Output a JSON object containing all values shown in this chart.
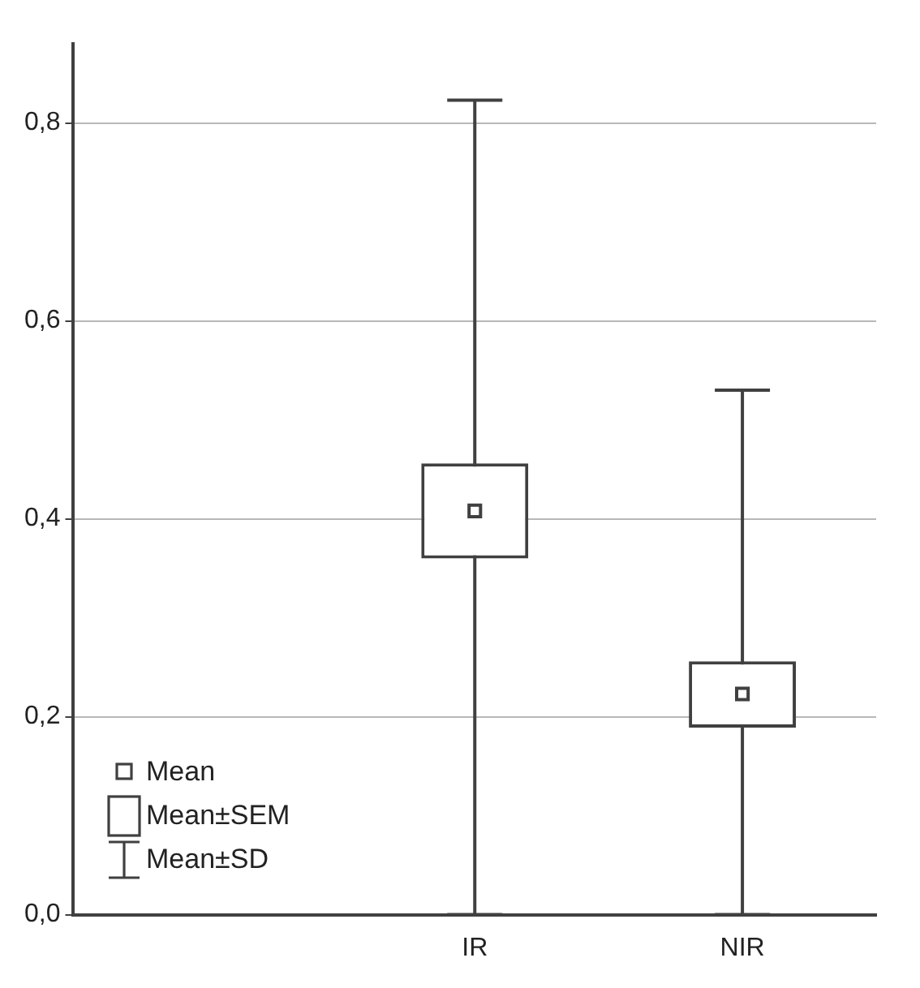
{
  "chart_data": {
    "type": "box",
    "categories": [
      null,
      "IR",
      "NIR"
    ],
    "boxes": [
      null,
      {
        "low": 0,
        "q1": 0.36,
        "median": 0.408,
        "q3": 0.456,
        "high": 0.823
      },
      {
        "low": 0,
        "q1": 0.189,
        "median": 0.223,
        "q3": 0.256,
        "high": 0.53
      }
    ],
    "color": "#404040",
    "ylim": [
      0,
      0.88
    ],
    "yticks": [
      {
        "value": 0,
        "label": "0,0"
      },
      {
        "value": 0.2,
        "label": "0,2"
      },
      {
        "value": 0.4,
        "label": "0,4"
      },
      {
        "value": 0.6,
        "label": "0,6"
      },
      {
        "value": 0.8,
        "label": "0,8"
      }
    ],
    "grid": "y",
    "annotations": [
      "Mean",
      "Mean±SEM",
      "Mean±SD"
    ]
  }
}
